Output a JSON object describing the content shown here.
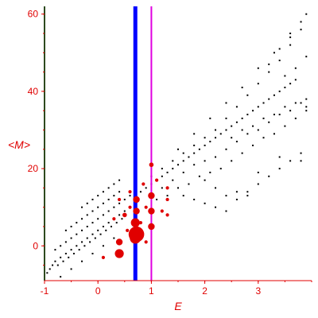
{
  "chart_data": {
    "type": "scatter",
    "xlabel": "E",
    "ylabel": "<M>",
    "xlim": [
      -1,
      4
    ],
    "ylim": [
      -9,
      62
    ],
    "x_ticks": [
      "-1",
      "0",
      "1",
      "2",
      "3"
    ],
    "x_tick_values": [
      -1,
      0,
      1,
      2,
      3
    ],
    "y_ticks": [
      "0",
      "20",
      "40",
      "60"
    ],
    "y_tick_values": [
      0,
      20,
      40,
      60
    ],
    "grid": false,
    "colors": {
      "axis": "#e00000",
      "left_axis_line": "#2e4a1e",
      "black_points": "#000000",
      "red_points": "#e00000",
      "blue_line": "#0000ff",
      "magenta_line": "#e000e0"
    },
    "vertical_lines": [
      {
        "x": 0.7,
        "color": "#0000ff",
        "width_class": "thick"
      },
      {
        "x": 1.0,
        "color": "#e000e0",
        "width_class": "thin"
      }
    ],
    "series": [
      {
        "marker": "small-black-dot",
        "points": [
          [
            -0.95,
            -7
          ],
          [
            -0.9,
            -6
          ],
          [
            -0.85,
            -5
          ],
          [
            -0.8,
            -4
          ],
          [
            -0.75,
            -5
          ],
          [
            -0.7,
            -3
          ],
          [
            -0.65,
            -4
          ],
          [
            -0.6,
            -2
          ],
          [
            -0.55,
            -3
          ],
          [
            -0.5,
            -1
          ],
          [
            -0.45,
            -2
          ],
          [
            -0.4,
            0
          ],
          [
            -0.35,
            -1
          ],
          [
            -0.3,
            1
          ],
          [
            -0.25,
            0
          ],
          [
            -0.2,
            2
          ],
          [
            -0.15,
            1
          ],
          [
            -0.1,
            3
          ],
          [
            -0.05,
            2
          ],
          [
            0.0,
            4
          ],
          [
            0.05,
            3
          ],
          [
            0.1,
            5
          ],
          [
            0.15,
            4
          ],
          [
            0.2,
            6
          ],
          [
            0.25,
            5
          ],
          [
            0.3,
            7
          ],
          [
            0.35,
            6
          ],
          [
            0.4,
            8
          ],
          [
            0.45,
            7
          ],
          [
            0.5,
            9
          ],
          [
            -0.8,
            -1
          ],
          [
            -0.7,
            0
          ],
          [
            -0.6,
            1
          ],
          [
            -0.5,
            2
          ],
          [
            -0.4,
            3
          ],
          [
            -0.3,
            4
          ],
          [
            -0.2,
            5
          ],
          [
            -0.1,
            6
          ],
          [
            0.0,
            7
          ],
          [
            0.1,
            8
          ],
          [
            0.2,
            9
          ],
          [
            0.3,
            10
          ],
          [
            0.4,
            11
          ],
          [
            0.5,
            12
          ],
          [
            0.6,
            13
          ],
          [
            -0.6,
            4
          ],
          [
            -0.5,
            5
          ],
          [
            -0.4,
            6
          ],
          [
            -0.3,
            7
          ],
          [
            -0.2,
            8
          ],
          [
            -0.1,
            9
          ],
          [
            0.0,
            10
          ],
          [
            0.1,
            11
          ],
          [
            0.2,
            12
          ],
          [
            0.3,
            13
          ],
          [
            0.4,
            14
          ],
          [
            -0.3,
            10
          ],
          [
            -0.2,
            11
          ],
          [
            -0.1,
            12
          ],
          [
            0.0,
            13
          ],
          [
            0.1,
            14
          ],
          [
            0.2,
            15
          ],
          [
            0.3,
            16
          ],
          [
            0.4,
            17
          ],
          [
            -0.7,
            -8
          ],
          [
            -0.5,
            -6
          ],
          [
            -0.3,
            -4
          ],
          [
            -0.1,
            -2
          ],
          [
            0.1,
            0
          ],
          [
            0.3,
            2
          ],
          [
            0.8,
            14
          ],
          [
            0.9,
            15
          ],
          [
            1.0,
            16
          ],
          [
            1.1,
            17
          ],
          [
            1.2,
            18
          ],
          [
            1.3,
            19
          ],
          [
            1.4,
            20
          ],
          [
            1.5,
            21
          ],
          [
            1.6,
            22
          ],
          [
            1.7,
            23
          ],
          [
            1.8,
            24
          ],
          [
            1.9,
            25
          ],
          [
            2.0,
            26
          ],
          [
            2.1,
            27
          ],
          [
            2.2,
            28
          ],
          [
            2.3,
            29
          ],
          [
            2.4,
            30
          ],
          [
            2.5,
            31
          ],
          [
            2.6,
            32
          ],
          [
            2.7,
            33
          ],
          [
            2.8,
            34
          ],
          [
            2.9,
            35
          ],
          [
            3.0,
            36
          ],
          [
            3.1,
            37
          ],
          [
            3.2,
            38
          ],
          [
            3.3,
            39
          ],
          [
            3.4,
            40
          ],
          [
            3.5,
            41
          ],
          [
            3.6,
            42
          ],
          [
            3.7,
            43
          ],
          [
            1.0,
            18
          ],
          [
            1.2,
            20
          ],
          [
            1.4,
            22
          ],
          [
            1.6,
            24
          ],
          [
            1.8,
            26
          ],
          [
            2.0,
            28
          ],
          [
            2.2,
            30
          ],
          [
            2.4,
            33
          ],
          [
            2.6,
            36
          ],
          [
            2.8,
            39
          ],
          [
            3.0,
            42
          ],
          [
            3.2,
            45
          ],
          [
            3.4,
            48
          ],
          [
            3.6,
            52
          ],
          [
            3.8,
            56
          ],
          [
            1.5,
            25
          ],
          [
            1.8,
            29
          ],
          [
            2.1,
            33
          ],
          [
            2.4,
            37
          ],
          [
            2.7,
            41
          ],
          [
            3.0,
            46
          ],
          [
            3.3,
            50
          ],
          [
            3.6,
            55
          ],
          [
            3.9,
            60
          ],
          [
            1.2,
            15
          ],
          [
            1.4,
            17
          ],
          [
            1.6,
            19
          ],
          [
            1.8,
            21
          ],
          [
            2.0,
            22
          ],
          [
            2.2,
            23
          ],
          [
            2.4,
            25
          ],
          [
            2.6,
            27
          ],
          [
            2.8,
            29
          ],
          [
            3.0,
            30
          ],
          [
            3.2,
            32
          ],
          [
            3.4,
            34
          ],
          [
            3.6,
            35
          ],
          [
            3.8,
            37
          ],
          [
            3.9,
            38
          ],
          [
            2.0,
            17
          ],
          [
            2.2,
            15
          ],
          [
            2.4,
            13
          ],
          [
            2.6,
            12
          ],
          [
            2.8,
            14
          ],
          [
            3.0,
            16
          ],
          [
            3.2,
            18
          ],
          [
            3.4,
            20
          ],
          [
            3.6,
            22
          ],
          [
            3.8,
            24
          ],
          [
            1.6,
            13
          ],
          [
            1.8,
            12
          ],
          [
            2.0,
            11
          ],
          [
            2.2,
            10
          ],
          [
            2.4,
            9
          ],
          [
            2.6,
            14
          ],
          [
            2.8,
            13
          ],
          [
            3.0,
            19
          ],
          [
            3.4,
            23
          ],
          [
            3.8,
            22
          ],
          [
            0.9,
            10
          ],
          [
            1.1,
            12
          ],
          [
            1.3,
            13
          ],
          [
            1.5,
            15
          ],
          [
            1.7,
            16
          ],
          [
            1.9,
            18
          ],
          [
            2.1,
            19
          ],
          [
            2.3,
            20
          ],
          [
            2.5,
            22
          ],
          [
            2.7,
            24
          ],
          [
            2.9,
            26
          ],
          [
            3.1,
            28
          ],
          [
            3.3,
            29
          ],
          [
            3.5,
            31
          ],
          [
            3.7,
            33
          ],
          [
            3.9,
            35
          ],
          [
            2.5,
            28
          ],
          [
            2.7,
            30
          ],
          [
            2.9,
            31
          ],
          [
            3.1,
            33
          ],
          [
            3.3,
            34
          ],
          [
            3.5,
            36
          ],
          [
            3.7,
            37
          ],
          [
            3.9,
            36
          ],
          [
            3.2,
            47
          ],
          [
            3.4,
            51
          ],
          [
            3.6,
            54
          ],
          [
            3.8,
            58
          ],
          [
            3.5,
            44
          ],
          [
            3.7,
            46
          ],
          [
            3.9,
            49
          ]
        ]
      },
      {
        "marker": "red-circle",
        "points": [
          [
            0.72,
            3,
            7
          ],
          [
            0.7,
            2,
            5
          ],
          [
            0.7,
            6,
            4
          ],
          [
            0.72,
            9,
            3
          ],
          [
            0.72,
            12,
            3
          ],
          [
            0.4,
            1,
            3
          ],
          [
            0.4,
            -2,
            4
          ],
          [
            1.0,
            5,
            3
          ],
          [
            1.0,
            9,
            3
          ],
          [
            1.0,
            13,
            3
          ],
          [
            1.0,
            21,
            2
          ],
          [
            0.5,
            8,
            2
          ],
          [
            0.3,
            7,
            1.5
          ],
          [
            0.1,
            -3,
            1.5
          ],
          [
            0.6,
            14,
            1.5
          ],
          [
            0.85,
            16,
            1.5
          ],
          [
            1.1,
            17,
            1.5
          ],
          [
            1.3,
            12,
            1.5
          ],
          [
            1.3,
            15,
            1.5
          ],
          [
            1.2,
            9,
            1.5
          ],
          [
            0.55,
            4,
            1.5
          ],
          [
            0.4,
            12,
            1.5
          ],
          [
            0.9,
            10,
            1.5
          ],
          [
            1.3,
            8,
            1.5
          ],
          [
            0.8,
            6,
            1.5
          ],
          [
            0.6,
            10,
            1.5
          ],
          [
            0.9,
            1,
            1.5
          ]
        ]
      }
    ]
  }
}
